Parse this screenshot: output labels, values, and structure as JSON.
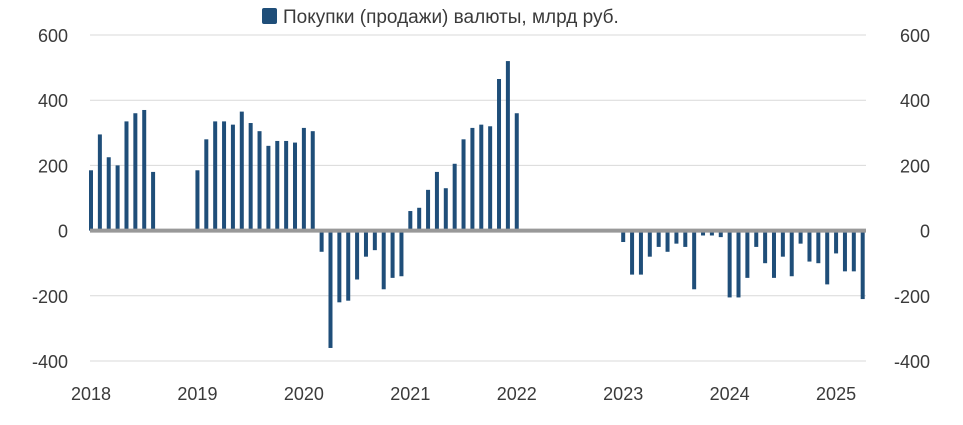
{
  "chart_data": {
    "type": "bar",
    "title": "",
    "legend": {
      "label": "Покупки (продажи) валюты, млрд руб.",
      "placement": "top-center"
    },
    "xlabel": "",
    "ylabel": "",
    "ylim": [
      -400,
      600
    ],
    "y_ticks_left": [
      "600",
      "400",
      "200",
      "0",
      "-200",
      "-400"
    ],
    "y_ticks_right": [
      "600",
      "400",
      "200",
      "0",
      "-200",
      "-400"
    ],
    "y_tick_values": [
      600,
      400,
      200,
      0,
      -200,
      -400
    ],
    "x_tick_labels": [
      "2018",
      "2019",
      "2020",
      "2021",
      "2022",
      "2023",
      "2024",
      "2025"
    ],
    "grid": "horizontal",
    "colors": {
      "bar": "#1f4e79",
      "zero_line": "#999999",
      "grid": "#d9d9d9"
    },
    "series": [
      {
        "name": "Покупки (продажи) валюты, млрд руб.",
        "start_month": "2018-01",
        "values": [
          185,
          295,
          225,
          200,
          335,
          360,
          370,
          180,
          null,
          null,
          null,
          null,
          185,
          280,
          335,
          335,
          325,
          365,
          330,
          305,
          260,
          275,
          275,
          270,
          315,
          305,
          -65,
          -360,
          -220,
          -215,
          -150,
          -80,
          -60,
          -180,
          -145,
          -140,
          60,
          70,
          125,
          180,
          130,
          205,
          280,
          315,
          325,
          320,
          465,
          520,
          360,
          null,
          null,
          null,
          null,
          null,
          null,
          null,
          null,
          null,
          null,
          null,
          -35,
          -135,
          -135,
          -80,
          -50,
          -65,
          -40,
          -50,
          -180,
          -15,
          -15,
          -20,
          -205,
          -205,
          -145,
          -50,
          -100,
          -145,
          -80,
          -140,
          -40,
          -95,
          -100,
          -165,
          -70,
          -125,
          -125,
          -210
        ]
      }
    ]
  }
}
